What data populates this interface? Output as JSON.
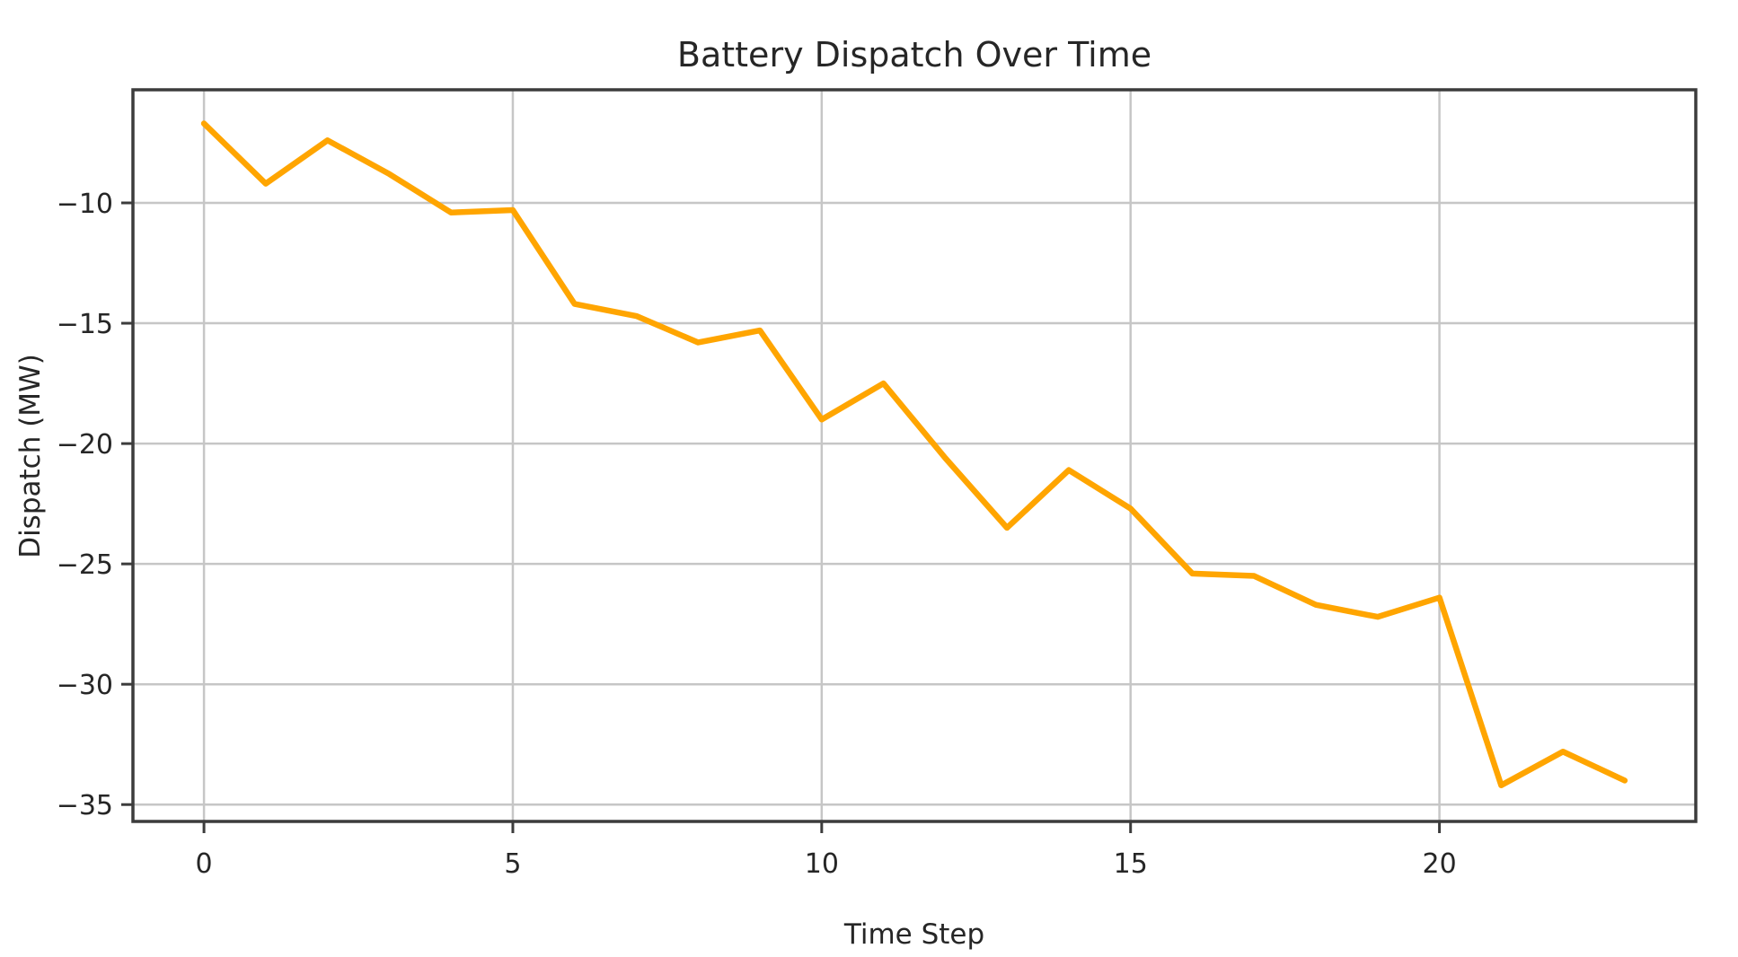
{
  "chart_data": {
    "type": "line",
    "title": "Battery Dispatch Over Time",
    "xlabel": "Time Step",
    "ylabel": "Dispatch (MW)",
    "x": [
      0,
      1,
      2,
      3,
      4,
      5,
      6,
      7,
      8,
      9,
      10,
      11,
      12,
      13,
      14,
      15,
      16,
      17,
      18,
      19,
      20,
      21,
      22,
      23
    ],
    "series": [
      {
        "name": "Battery dispatch",
        "color": "#FFA500",
        "values": [
          -6.7,
          -9.2,
          -7.4,
          -8.8,
          -10.4,
          -10.3,
          -14.2,
          -14.7,
          -15.8,
          -15.3,
          -19.0,
          -17.5,
          -20.6,
          -23.5,
          -21.1,
          -22.7,
          -25.4,
          -25.5,
          -26.7,
          -27.2,
          -26.4,
          -34.2,
          -32.8,
          -34.0
        ]
      }
    ],
    "xticks": [
      0,
      5,
      10,
      15,
      20
    ],
    "yticks": [
      -10,
      -15,
      -20,
      -25,
      -30,
      -35
    ],
    "xlim": [
      -1.15,
      24.15
    ],
    "ylim": [
      -35.7,
      -5.3
    ],
    "grid": true,
    "legend": false,
    "grid_color": "#c6c6c6",
    "spine_color": "#3c3c3c",
    "tick_color": "#3c3c3c"
  }
}
